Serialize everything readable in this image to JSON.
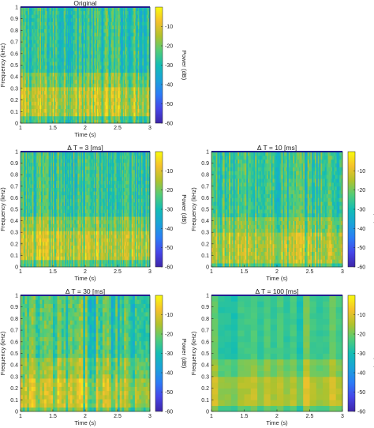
{
  "chart_data": [
    {
      "type": "heatmap",
      "title": "Original",
      "xlabel": "Time (s)",
      "ylabel": "Frequency (kHz)",
      "colorbar_label": "Power (dB)",
      "xlim": [
        1,
        3
      ],
      "ylim": [
        0,
        1
      ],
      "clim": [
        -60,
        0
      ],
      "colormap": "parula",
      "x_ticks": [
        "1",
        "1.5",
        "2",
        "2.5",
        "3"
      ],
      "y_ticks": [
        "0",
        "0.1",
        "0.2",
        "0.3",
        "0.4",
        "0.5",
        "0.6",
        "0.7",
        "0.8",
        "0.9",
        "1"
      ],
      "colorbar_ticks": [
        "-10",
        "-20",
        "-30",
        "-40",
        "-50",
        "-60"
      ],
      "time_bins": 120,
      "freq_bins": 32,
      "band_mean_power_db": [
        {
          "freq_kHz": [
            0.0,
            0.05
          ],
          "power_dB": -24
        },
        {
          "freq_kHz": [
            0.05,
            0.3
          ],
          "power_dB": -14
        },
        {
          "freq_kHz": [
            0.3,
            0.45
          ],
          "power_dB": -20
        },
        {
          "freq_kHz": [
            0.45,
            1.0
          ],
          "power_dB": -27
        }
      ]
    },
    {
      "type": "heatmap",
      "title": "Δ T = 3 [ms]",
      "xlabel": "Time (s)",
      "ylabel": "Frequency (kHz)",
      "colorbar_label": "Power (dB)",
      "xlim": [
        1,
        3
      ],
      "ylim": [
        0,
        1
      ],
      "clim": [
        -60,
        0
      ],
      "colormap": "parula",
      "x_ticks": [
        "1",
        "1.5",
        "2",
        "2.5",
        "3"
      ],
      "y_ticks": [
        "0",
        "0.1",
        "0.2",
        "0.3",
        "0.4",
        "0.5",
        "0.6",
        "0.7",
        "0.8",
        "0.9",
        "1"
      ],
      "colorbar_ticks": [
        "-10",
        "-20",
        "-30",
        "-40",
        "-50",
        "-60"
      ],
      "time_bins": 120,
      "freq_bins": 32,
      "band_mean_power_db": [
        {
          "freq_kHz": [
            0.0,
            0.05
          ],
          "power_dB": -24
        },
        {
          "freq_kHz": [
            0.05,
            0.3
          ],
          "power_dB": -14
        },
        {
          "freq_kHz": [
            0.3,
            0.45
          ],
          "power_dB": -20
        },
        {
          "freq_kHz": [
            0.45,
            1.0
          ],
          "power_dB": -27
        }
      ]
    },
    {
      "type": "heatmap",
      "title": "Δ T = 10 [ms]",
      "xlabel": "Time (s)",
      "ylabel": "Frequency (kHz)",
      "colorbar_label": "Power (dB)",
      "xlim": [
        1,
        3
      ],
      "ylim": [
        0,
        1
      ],
      "clim": [
        -60,
        0
      ],
      "colormap": "parula",
      "x_ticks": [
        "1",
        "1.5",
        "2",
        "2.5",
        "3"
      ],
      "y_ticks": [
        "0",
        "0.1",
        "0.2",
        "0.3",
        "0.4",
        "0.5",
        "0.6",
        "0.7",
        "0.8",
        "0.9",
        "1"
      ],
      "colorbar_ticks": [
        "-10",
        "-20",
        "-30",
        "-40",
        "-50",
        "-60"
      ],
      "time_bins": 90,
      "freq_bins": 30,
      "band_mean_power_db": [
        {
          "freq_kHz": [
            0.0,
            0.05
          ],
          "power_dB": -24
        },
        {
          "freq_kHz": [
            0.05,
            0.3
          ],
          "power_dB": -15
        },
        {
          "freq_kHz": [
            0.3,
            0.45
          ],
          "power_dB": -20
        },
        {
          "freq_kHz": [
            0.45,
            1.0
          ],
          "power_dB": -26
        }
      ]
    },
    {
      "type": "heatmap",
      "title": "Δ T = 30 [ms]",
      "xlabel": "Time (s)",
      "ylabel": "Frequency (kHz)",
      "colorbar_label": "Power (dB)",
      "xlim": [
        1,
        3
      ],
      "ylim": [
        0,
        1
      ],
      "clim": [
        -60,
        0
      ],
      "colormap": "parula",
      "x_ticks": [
        "1",
        "1.5",
        "2",
        "2.5",
        "3"
      ],
      "y_ticks": [
        "0",
        "0.1",
        "0.2",
        "0.3",
        "0.4",
        "0.5",
        "0.6",
        "0.7",
        "0.8",
        "0.9",
        "1"
      ],
      "colorbar_ticks": [
        "-10",
        "-20",
        "-30",
        "-40",
        "-50",
        "-60"
      ],
      "time_bins": 60,
      "freq_bins": 28,
      "band_mean_power_db": [
        {
          "freq_kHz": [
            0.0,
            0.05
          ],
          "power_dB": -23
        },
        {
          "freq_kHz": [
            0.05,
            0.3
          ],
          "power_dB": -15
        },
        {
          "freq_kHz": [
            0.3,
            0.45
          ],
          "power_dB": -20
        },
        {
          "freq_kHz": [
            0.45,
            1.0
          ],
          "power_dB": -25
        }
      ]
    },
    {
      "type": "heatmap",
      "title": "Δ T = 100 [ms]",
      "xlabel": "Time (s)",
      "ylabel": "Frequency (kHz)",
      "colorbar_label": "Power (dB)",
      "xlim": [
        1,
        3
      ],
      "ylim": [
        0,
        1
      ],
      "clim": [
        -60,
        0
      ],
      "colormap": "parula",
      "x_ticks": [
        "1",
        "1.5",
        "2",
        "2.5",
        "3"
      ],
      "y_ticks": [
        "0",
        "0.1",
        "0.2",
        "0.3",
        "0.4",
        "0.5",
        "0.6",
        "0.7",
        "0.8",
        "0.9",
        "1"
      ],
      "colorbar_ticks": [
        "-10",
        "-20",
        "-30",
        "-40",
        "-50",
        "-60"
      ],
      "time_bins": 20,
      "freq_bins": 20,
      "band_mean_power_db": [
        {
          "freq_kHz": [
            0.0,
            0.05
          ],
          "power_dB": -22
        },
        {
          "freq_kHz": [
            0.05,
            0.3
          ],
          "power_dB": -14
        },
        {
          "freq_kHz": [
            0.3,
            0.45
          ],
          "power_dB": -19
        },
        {
          "freq_kHz": [
            0.45,
            1.0
          ],
          "power_dB": -24
        }
      ]
    }
  ]
}
